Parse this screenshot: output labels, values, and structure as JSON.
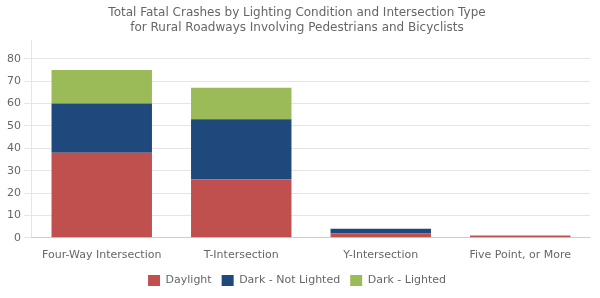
{
  "chart_data": {
    "type": "bar",
    "title": "Total Fatal Crashes by Lighting Condition and Intersection Type\nfor Rural Roadways Involving Pedestrians and Bicyclists",
    "categories": [
      "Four-Way Intersection",
      "T-Intersection",
      "Y-Intersection",
      "Five Point, or More"
    ],
    "series": [
      {
        "name": "Daylight",
        "color": "#C0504D",
        "values": [
          38,
          26,
          2,
          1
        ]
      },
      {
        "name": "Dark - Not Lighted",
        "color": "#1F497D",
        "values": [
          22,
          27,
          2,
          0
        ]
      },
      {
        "name": "Dark - Lighted",
        "color": "#9BBB59",
        "values": [
          15,
          14,
          0,
          0
        ]
      }
    ],
    "stacked": true,
    "ylim": [
      0,
      88
    ],
    "yticks": [
      0,
      10,
      20,
      30,
      40,
      50,
      60,
      70,
      80
    ],
    "grid": true,
    "legend": "bottom"
  }
}
